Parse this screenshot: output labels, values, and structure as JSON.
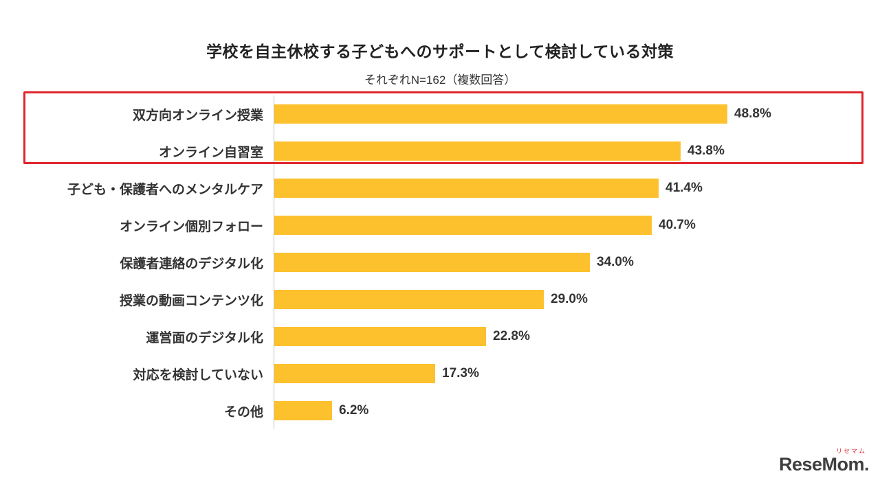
{
  "title": "学校を自主休校する子どもへのサポートとして検討している対策",
  "subtitle": "それぞれN=162（複数回答）",
  "chart_data": {
    "type": "bar",
    "orientation": "horizontal",
    "title": "学校を自主休校する子どもへのサポートとして検討している対策",
    "subtitle": "それぞれN=162（複数回答）",
    "n": 162,
    "categories": [
      "双方向オンライン授業",
      "オンライン自習室",
      "子ども・保護者へのメンタルケア",
      "オンライン個別フォロー",
      "保護者連絡のデジタル化",
      "授業の動画コンテンツ化",
      "運営面のデジタル化",
      "対応を検討していない",
      "その他"
    ],
    "values": [
      48.8,
      43.8,
      41.4,
      40.7,
      34.0,
      29.0,
      22.8,
      17.3,
      6.2
    ],
    "value_labels": [
      "48.8%",
      "43.8%",
      "41.4%",
      "40.7%",
      "34.0%",
      "29.0%",
      "22.8%",
      "17.3%",
      "6.2%"
    ],
    "unit": "%",
    "bar_color": "#fcc12c",
    "xlim": [
      0,
      60
    ],
    "gridlines": false,
    "legend": "none",
    "highlight": {
      "rows": [
        0,
        1
      ],
      "color": "#e0262c"
    }
  },
  "logo": {
    "text": "ReseMom.",
    "ruby": "リセマム"
  }
}
